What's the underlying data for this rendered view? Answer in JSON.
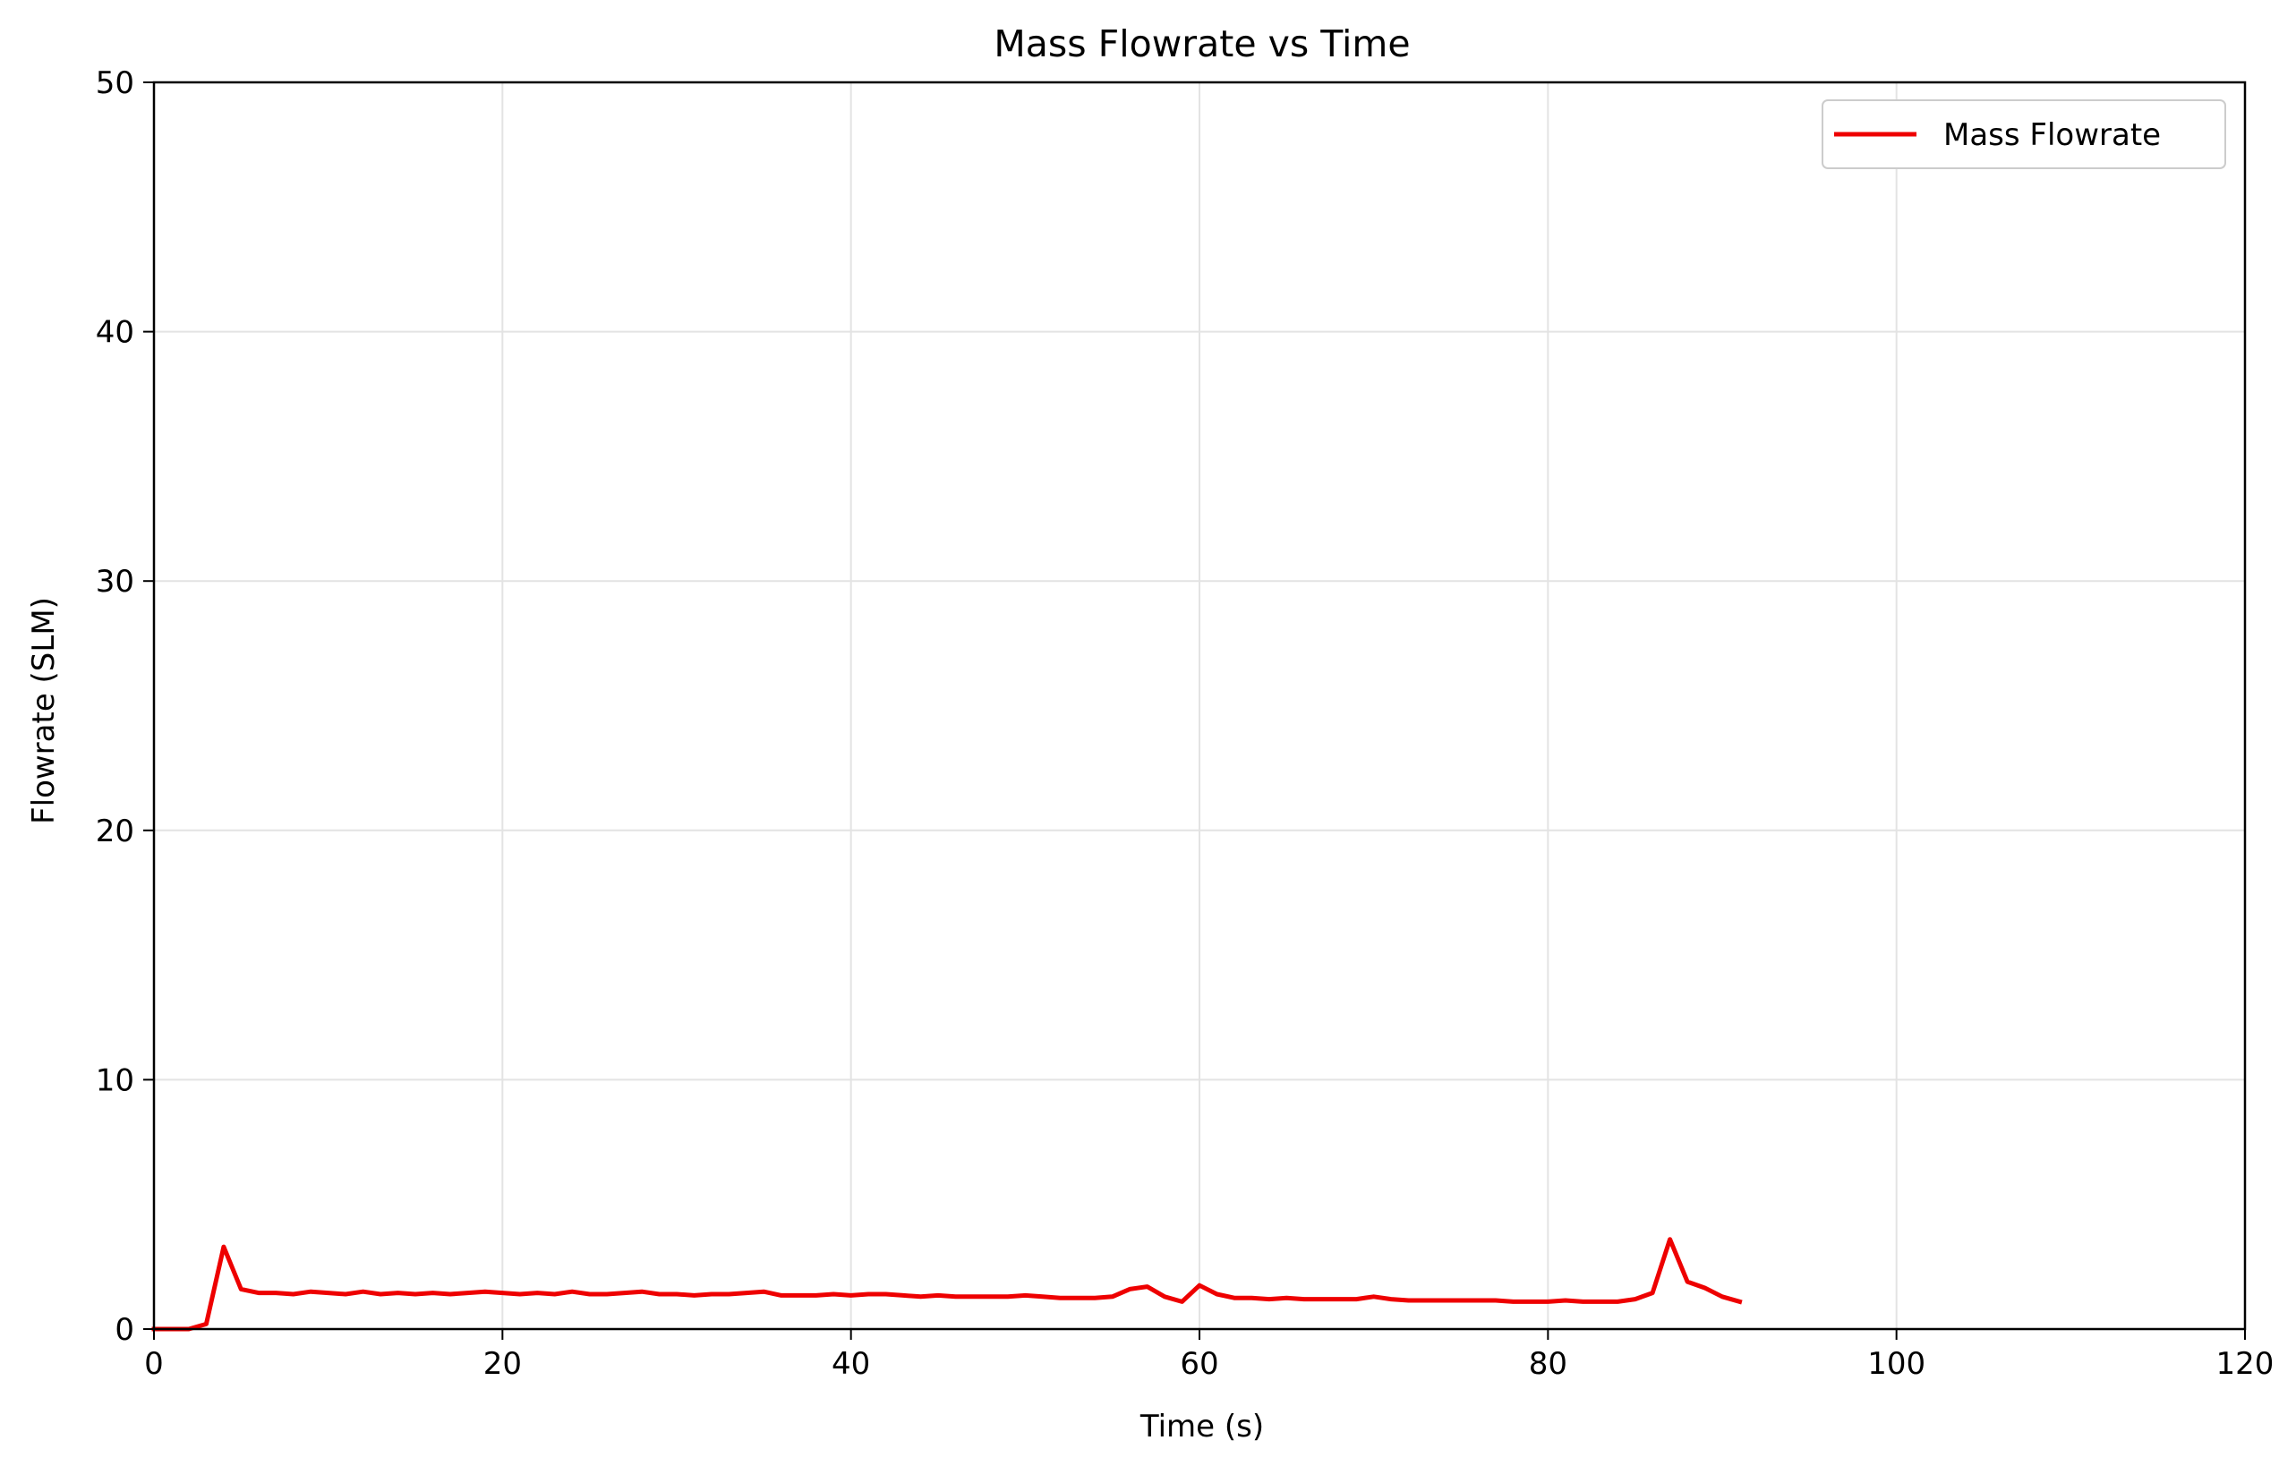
{
  "chart_data": {
    "type": "line",
    "title": "Mass Flowrate vs Time",
    "xlabel": "Time (s)",
    "ylabel": "Flowrate (SLM)",
    "xlim": [
      0,
      120
    ],
    "ylim": [
      0,
      50
    ],
    "xticks": [
      0,
      20,
      40,
      60,
      80,
      100,
      120
    ],
    "yticks": [
      0,
      10,
      20,
      30,
      40,
      50
    ],
    "xtick_labels": [
      "0",
      "20",
      "40",
      "60",
      "80",
      "100",
      "120"
    ],
    "ytick_labels": [
      "0",
      "10",
      "20",
      "30",
      "40",
      "50"
    ],
    "grid": true,
    "legend_position": "top-right",
    "series": [
      {
        "name": "Mass Flowrate",
        "color": "#ee0000",
        "x": [
          0,
          1,
          2,
          3,
          4,
          5,
          6,
          7,
          8,
          9,
          10,
          11,
          12,
          13,
          14,
          15,
          16,
          17,
          18,
          19,
          20,
          21,
          22,
          23,
          24,
          25,
          26,
          27,
          28,
          29,
          30,
          31,
          32,
          33,
          34,
          35,
          36,
          37,
          38,
          39,
          40,
          41,
          42,
          43,
          44,
          45,
          46,
          47,
          48,
          49,
          50,
          51,
          52,
          53,
          54,
          55,
          56,
          57,
          58,
          59,
          60,
          61,
          62,
          63,
          64,
          65,
          66,
          67,
          68,
          69,
          70,
          71,
          72,
          73,
          74,
          75,
          76,
          77,
          78,
          79,
          80,
          81,
          82,
          83,
          84,
          85,
          86,
          87,
          88,
          89,
          90,
          91
        ],
        "y": [
          0,
          0,
          0,
          0.2,
          3.3,
          1.6,
          1.45,
          1.45,
          1.4,
          1.5,
          1.45,
          1.4,
          1.5,
          1.4,
          1.45,
          1.4,
          1.45,
          1.4,
          1.45,
          1.5,
          1.45,
          1.4,
          1.45,
          1.4,
          1.5,
          1.4,
          1.4,
          1.45,
          1.5,
          1.4,
          1.4,
          1.35,
          1.4,
          1.4,
          1.45,
          1.5,
          1.35,
          1.35,
          1.35,
          1.4,
          1.35,
          1.4,
          1.4,
          1.35,
          1.3,
          1.35,
          1.3,
          1.3,
          1.3,
          1.3,
          1.35,
          1.3,
          1.25,
          1.25,
          1.25,
          1.3,
          1.6,
          1.7,
          1.3,
          1.1,
          1.75,
          1.4,
          1.25,
          1.25,
          1.2,
          1.25,
          1.2,
          1.2,
          1.2,
          1.2,
          1.3,
          1.2,
          1.15,
          1.15,
          1.15,
          1.15,
          1.15,
          1.15,
          1.1,
          1.1,
          1.1,
          1.15,
          1.1,
          1.1,
          1.1,
          1.2,
          1.45,
          3.6,
          1.9,
          1.65,
          1.3,
          1.1
        ]
      }
    ]
  }
}
